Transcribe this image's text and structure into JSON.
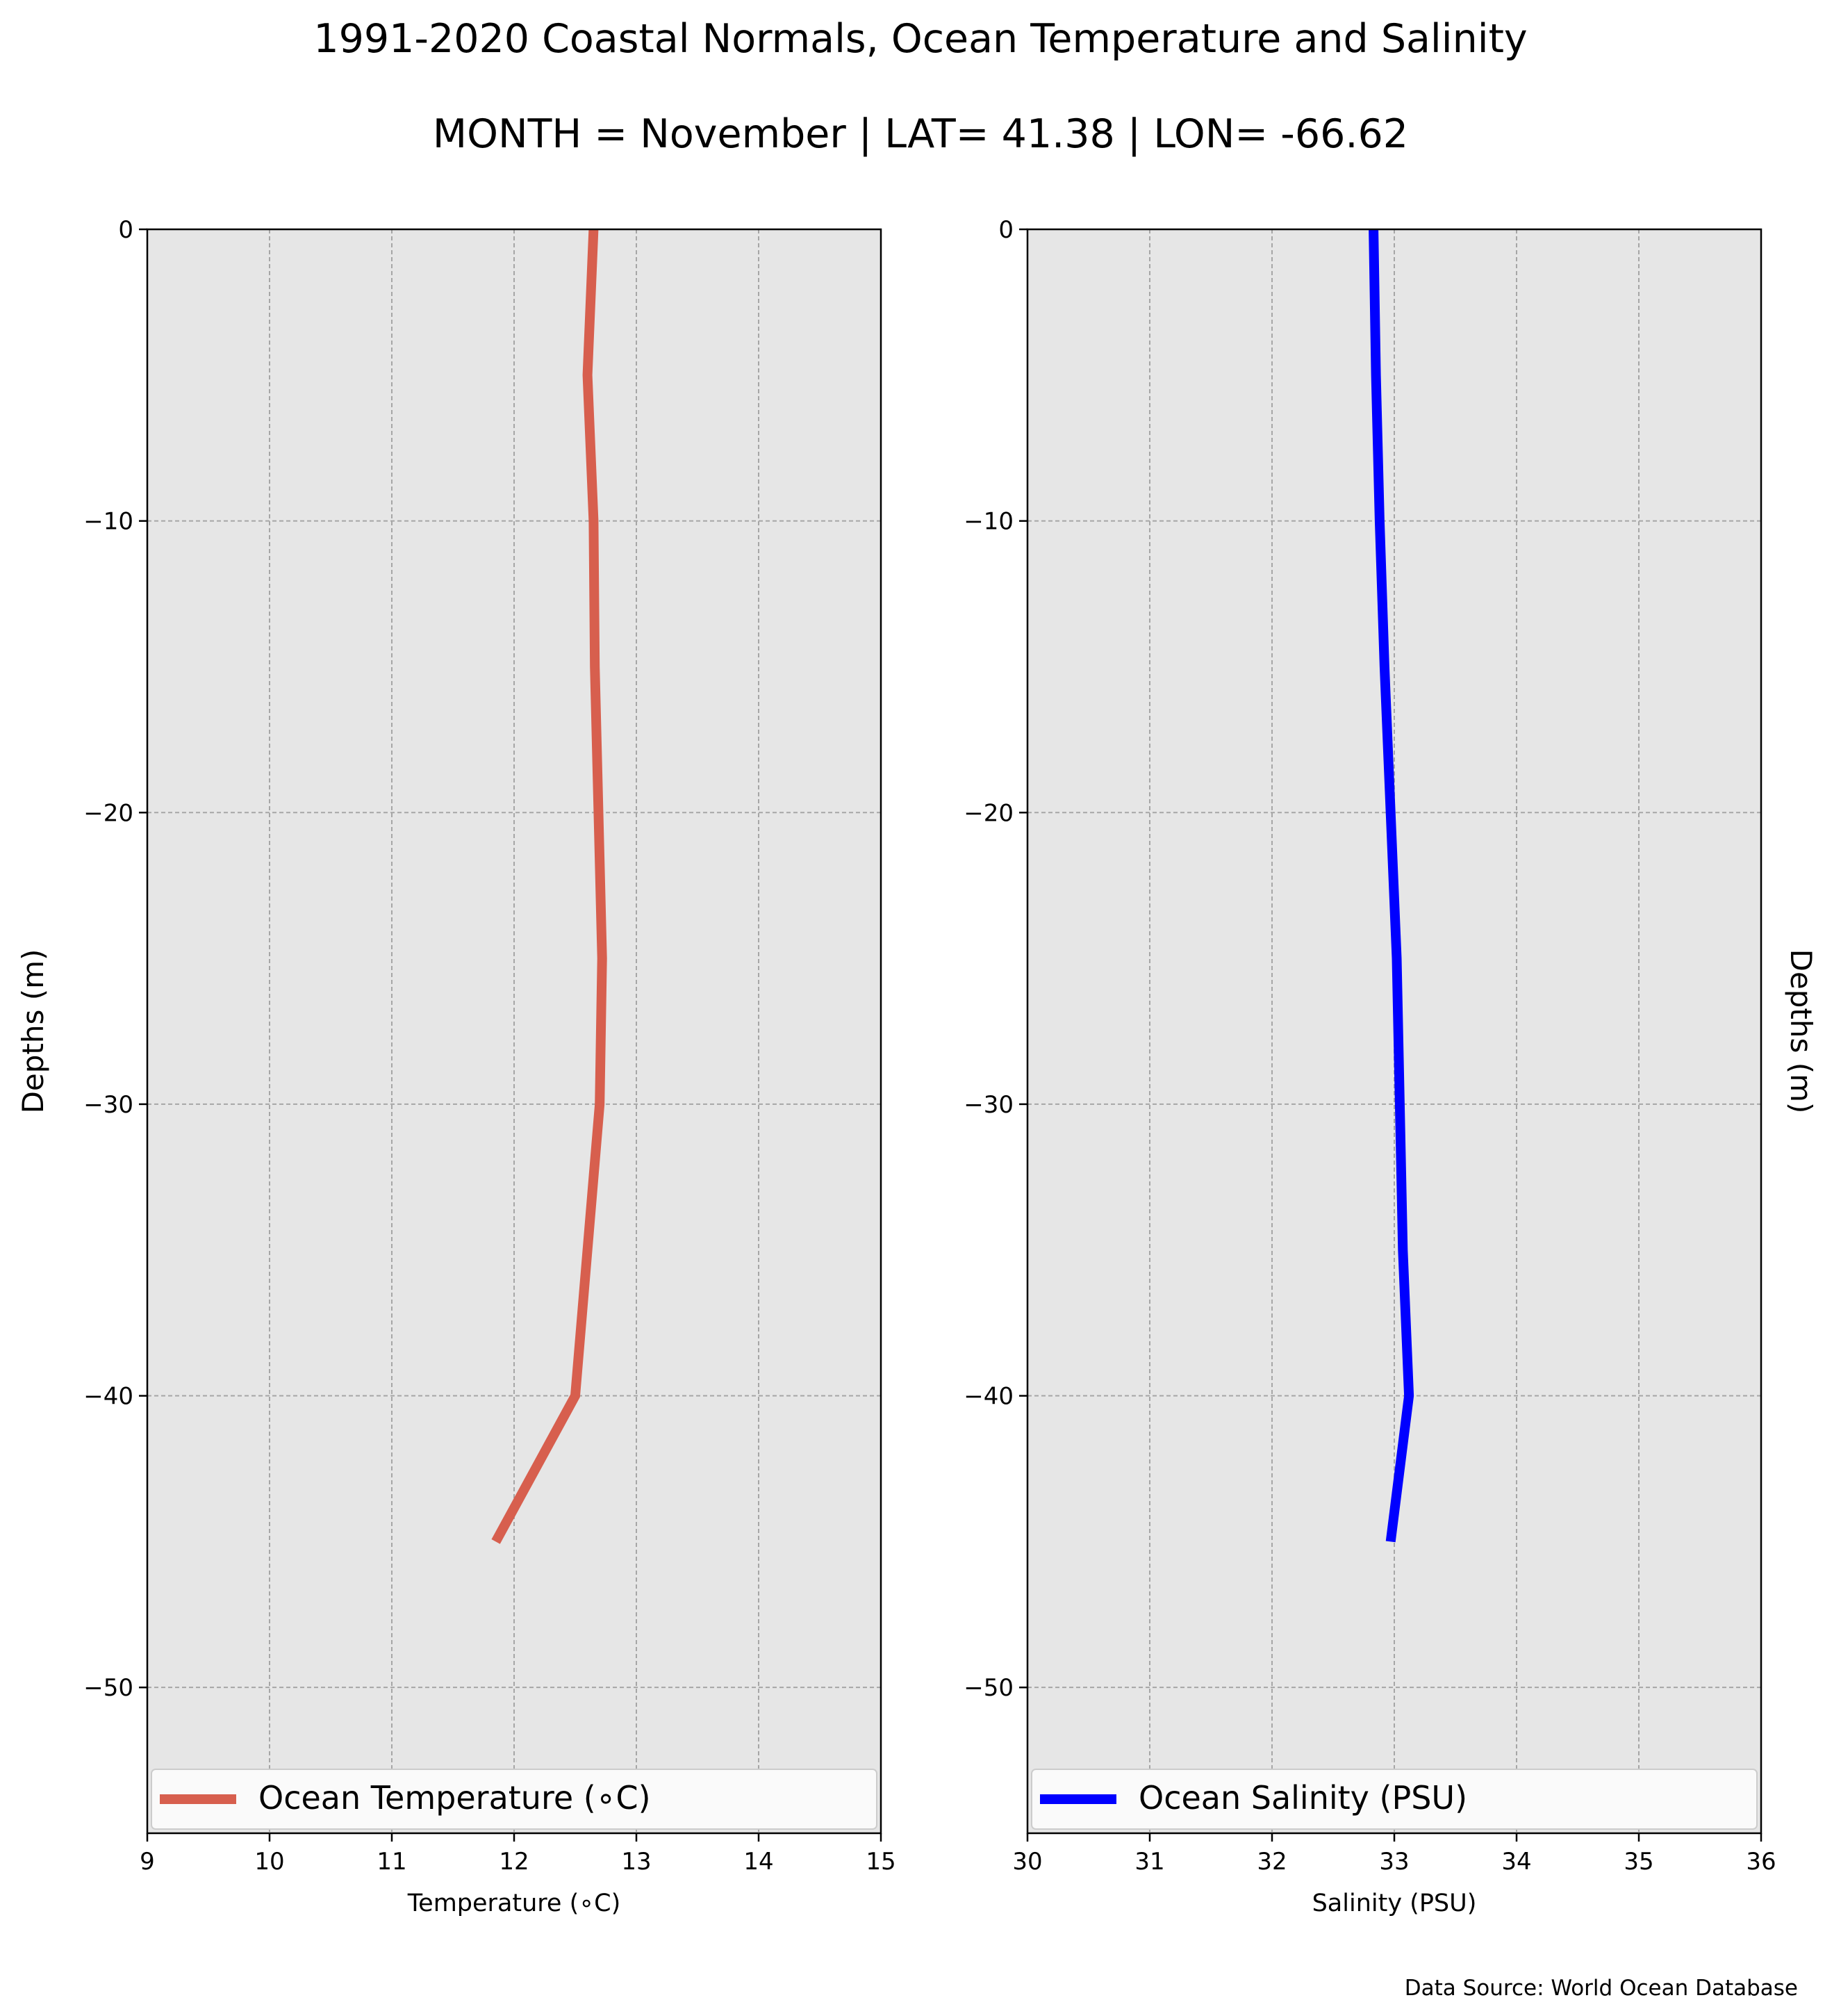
{
  "title": "1991-2020 Coastal Normals, Ocean Temperature and Salinity",
  "subtitle": "MONTH = November | LAT= 41.38 | LON= -66.62",
  "source": "Data Source: World Ocean Database",
  "colors": {
    "panel_background": "#e6e6e6",
    "grid": "#a6a6a6",
    "temperature": "#d75f4e",
    "salinity": "#0000ff"
  },
  "chart_data": [
    {
      "type": "line",
      "xlabel": "Temperature ($^\\circ$C)",
      "xlabel_display": "Temperature (∘C)",
      "ylabel": "Depths (m)",
      "ylabel_side": "left",
      "xlim": [
        9,
        15
      ],
      "ylim": [
        -55,
        0
      ],
      "xticks": [
        9,
        10,
        11,
        12,
        13,
        14,
        15
      ],
      "yticks": [
        0,
        -10,
        -20,
        -30,
        -40,
        -50
      ],
      "ytick_labels": [
        "0",
        "−10",
        "−20",
        "−30",
        "−40",
        "−50"
      ],
      "grid": true,
      "legend_position": "bottom",
      "series": [
        {
          "name": "Ocean Temperature (∘C)",
          "color": "#d75f4e",
          "x": [
            12.65,
            12.6,
            12.65,
            12.66,
            12.72,
            12.7,
            12.6,
            12.5,
            11.85
          ],
          "y": [
            0,
            -5,
            -10,
            -15,
            -25,
            -30,
            -35,
            -40,
            -45
          ]
        }
      ]
    },
    {
      "type": "line",
      "xlabel": "Salinity (PSU)",
      "ylabel": "Depths (m)",
      "ylabel_side": "right",
      "xlim": [
        30,
        36
      ],
      "ylim": [
        -55,
        0
      ],
      "xticks": [
        30,
        31,
        32,
        33,
        34,
        35,
        36
      ],
      "yticks": [
        0,
        -10,
        -20,
        -30,
        -40,
        -50
      ],
      "ytick_labels": [
        "0",
        "−10",
        "−20",
        "−30",
        "−40",
        "−50"
      ],
      "grid": true,
      "legend_position": "bottom",
      "series": [
        {
          "name": "Ocean Salinity (PSU)",
          "color": "#0000ff",
          "x": [
            32.83,
            32.85,
            32.88,
            32.92,
            32.97,
            33.02,
            33.07,
            33.12,
            32.97
          ],
          "y": [
            0,
            -5,
            -10,
            -15,
            -20,
            -25,
            -35,
            -40,
            -45
          ]
        }
      ]
    }
  ]
}
